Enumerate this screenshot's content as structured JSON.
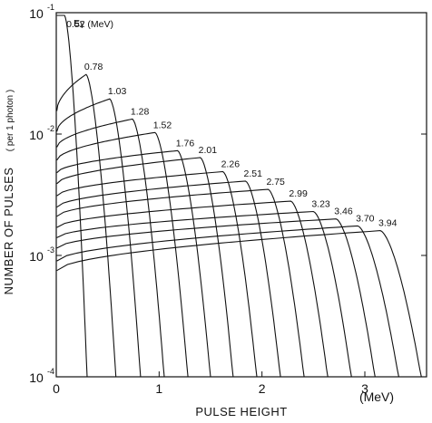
{
  "chart_data": {
    "type": "line",
    "xlabel": "PULSE HEIGHT",
    "xunit": "(MeV)",
    "ylabel": "NUMBER OF PULSES",
    "ylabel_note": "( per 1 photon )",
    "xlim": [
      0,
      3.6
    ],
    "ylim": [
      0.0001,
      0.1
    ],
    "yscale": "log",
    "x_ticks": [
      "0",
      "1",
      "2",
      "3"
    ],
    "y_ticks": [
      {
        "base": "10",
        "exp": "-1",
        "value": 0.1
      },
      {
        "base": "10",
        "exp": "-2",
        "value": 0.01
      },
      {
        "base": "10",
        "exp": "-3",
        "value": 0.001
      },
      {
        "base": "10",
        "exp": "-4",
        "value": 0.0001
      }
    ],
    "legend_header": "Eγ",
    "series": [
      {
        "name": "0.52 (MeV)",
        "plateau": 0.095,
        "low": 0.095,
        "edge": 0.08,
        "cut": 0.3
      },
      {
        "name": "0.78",
        "plateau": 0.031,
        "low": 0.0155,
        "edge": 0.29,
        "cut": 0.58
      },
      {
        "name": "1.03",
        "plateau": 0.0195,
        "low": 0.0105,
        "edge": 0.52,
        "cut": 0.82
      },
      {
        "name": "1.28",
        "plateau": 0.0133,
        "low": 0.0078,
        "edge": 0.74,
        "cut": 1.05
      },
      {
        "name": "1.52",
        "plateau": 0.0103,
        "low": 0.0061,
        "edge": 0.96,
        "cut": 1.28
      },
      {
        "name": "1.76",
        "plateau": 0.0073,
        "low": 0.0048,
        "edge": 1.18,
        "cut": 1.5
      },
      {
        "name": "2.01",
        "plateau": 0.0064,
        "low": 0.0039,
        "edge": 1.4,
        "cut": 1.72
      },
      {
        "name": "2.26",
        "plateau": 0.0049,
        "low": 0.0031,
        "edge": 1.62,
        "cut": 1.95
      },
      {
        "name": "2.51",
        "plateau": 0.0041,
        "low": 0.0025,
        "edge": 1.84,
        "cut": 2.18
      },
      {
        "name": "2.75",
        "plateau": 0.0035,
        "low": 0.0021,
        "edge": 2.06,
        "cut": 2.41
      },
      {
        "name": "2.99",
        "plateau": 0.0028,
        "low": 0.0017,
        "edge": 2.28,
        "cut": 2.64
      },
      {
        "name": "3.23",
        "plateau": 0.0023,
        "low": 0.0014,
        "edge": 2.5,
        "cut": 2.87
      },
      {
        "name": "3.46",
        "plateau": 0.002,
        "low": 0.00115,
        "edge": 2.72,
        "cut": 3.1
      },
      {
        "name": "3.70",
        "plateau": 0.00175,
        "low": 0.0009,
        "edge": 2.93,
        "cut": 3.33
      },
      {
        "name": "3.94",
        "plateau": 0.0016,
        "low": 0.00075,
        "edge": 3.15,
        "cut": 3.55
      }
    ],
    "grid": false
  }
}
